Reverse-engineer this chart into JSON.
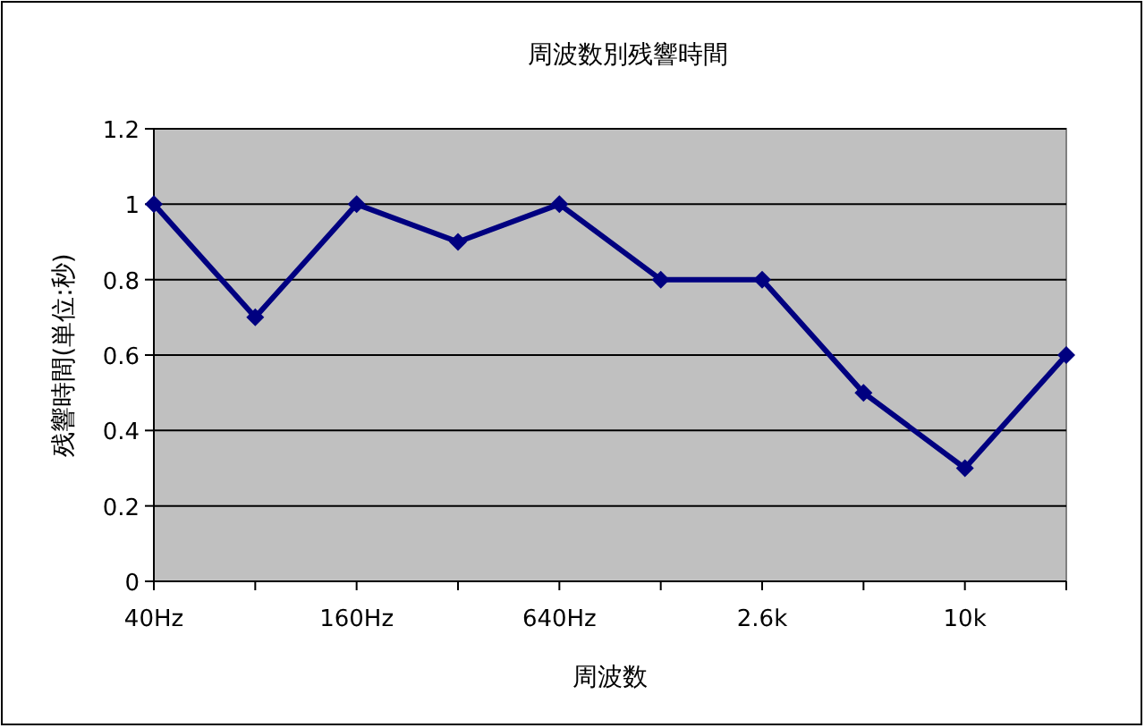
{
  "chart_data": {
    "type": "line",
    "title": "周波数別残響時間",
    "xlabel": "周波数",
    "ylabel": "残響時間(単位:秒)",
    "categories": [
      "40Hz",
      null,
      "160Hz",
      null,
      "640Hz",
      null,
      "2.6k",
      null,
      "10k",
      null
    ],
    "series": [
      {
        "color": "#000080",
        "values": [
          1,
          0.7,
          1,
          0.9,
          1,
          0.8,
          0.8,
          0.5,
          0.3,
          0.6
        ]
      }
    ],
    "ylim": [
      0,
      1.2
    ],
    "yticks": [
      0,
      0.2,
      0.4,
      0.6,
      0.8,
      1,
      1.2
    ],
    "grid": "y",
    "marker": "diamond"
  }
}
